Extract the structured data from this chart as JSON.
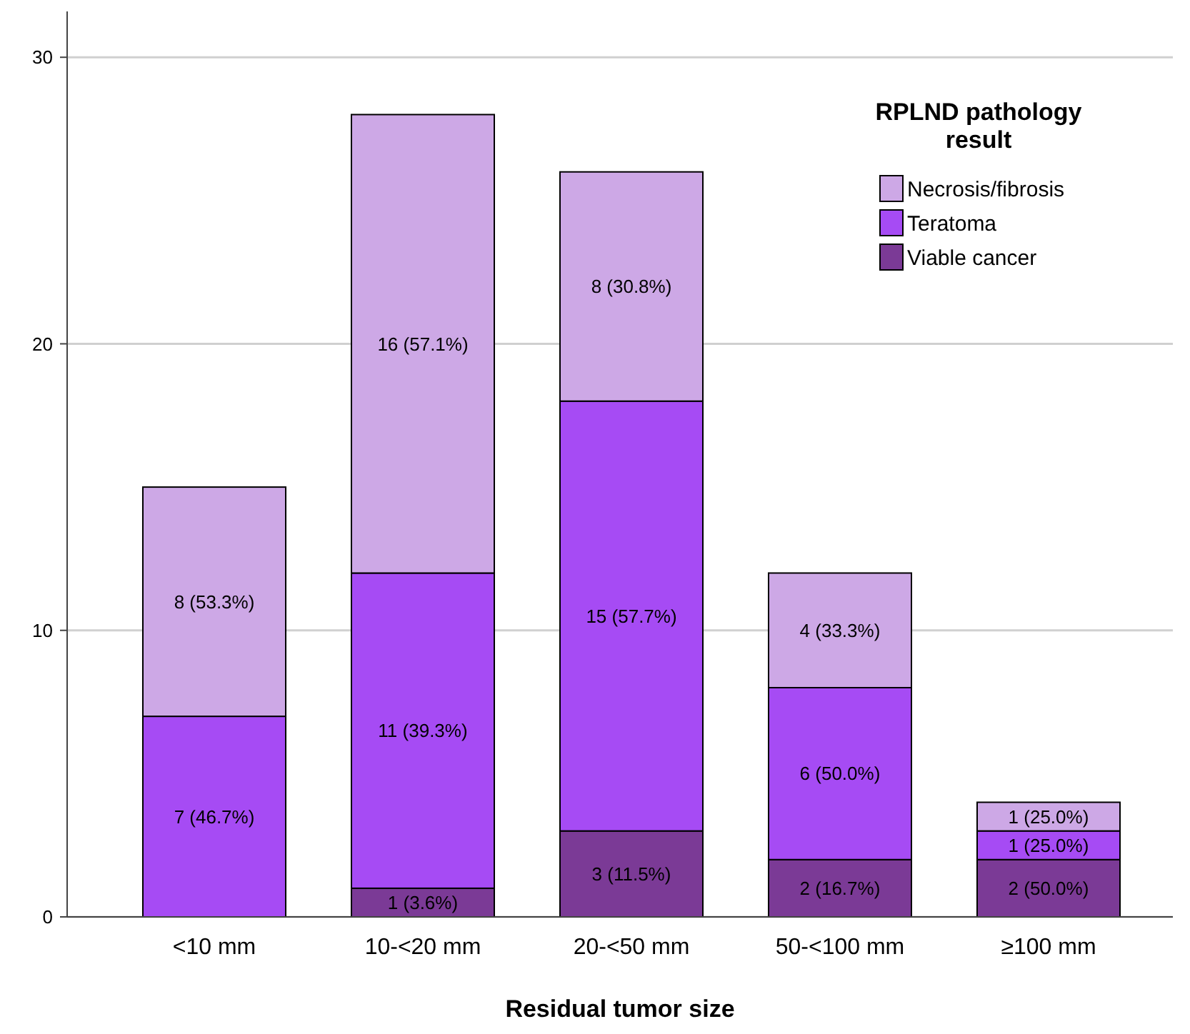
{
  "chart_data": {
    "type": "bar",
    "stacked": true,
    "xlabel": "Residual tumor size",
    "legend_title": "RPLND pathology result",
    "categories": [
      "<10 mm",
      "10-<20 mm",
      "20-<50 mm",
      "50-<100 mm",
      "≥100 mm"
    ],
    "series": [
      {
        "name": "Viable cancer",
        "color": "#7b3a96",
        "values": [
          0,
          1,
          3,
          2,
          2
        ],
        "value_labels": [
          null,
          "1 (3.6%)",
          "3 (11.5%)",
          "2 (16.7%)",
          "2 (50.0%)"
        ]
      },
      {
        "name": "Teratoma",
        "color": "#a64bf4",
        "values": [
          7,
          11,
          15,
          6,
          1
        ],
        "value_labels": [
          "7 (46.7%)",
          "11 (39.3%)",
          "15 (57.7%)",
          "6 (50.0%)",
          "1 (25.0%)"
        ]
      },
      {
        "name": "Necrosis/fibrosis",
        "color": "#cda8e6",
        "values": [
          8,
          16,
          8,
          4,
          1
        ],
        "value_labels": [
          "8 (53.3%)",
          "16 (57.1%)",
          "8 (30.8%)",
          "4 (33.3%)",
          "1 (25.0%)"
        ]
      }
    ],
    "ylim": [
      0,
      31.6
    ],
    "yticks": [
      0,
      10,
      20,
      30
    ],
    "grid": "y",
    "legend": "top right"
  }
}
